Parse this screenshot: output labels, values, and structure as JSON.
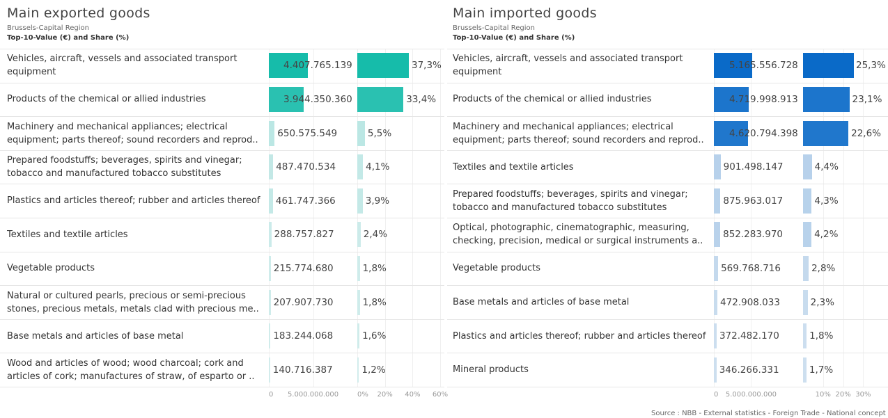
{
  "chart_data": [
    {
      "type": "bar",
      "title": "Main exported goods",
      "subtitle": "Brussels-Capital Region",
      "caption": "Top-10-Value (€) and Share (%)",
      "categories": [
        "Vehicles, aircraft, vessels and associated transport equipment",
        "Products of the chemical or allied industries",
        "Machinery and mechanical appliances; electrical equipment; parts thereof; sound recorders and reprod..",
        "Prepared foodstuffs; beverages, spirits and vinegar; tobacco and manufactured tobacco substitutes",
        "Plastics and articles thereof; rubber and articles thereof",
        "Textiles and textile articles",
        "Vegetable products",
        "Natural or cultured pearls, precious or semi-precious stones, precious metals, metals clad with precious me..",
        "Base metals and articles of base metal",
        "Wood and articles of wood; wood charcoal; cork and articles of cork; manufactures of straw, of esparto or .."
      ],
      "series": [
        {
          "values": [
            4407765139,
            3944350360,
            650575549,
            487470534,
            461747366,
            288757827,
            215774680,
            207907730,
            183244068,
            140716387
          ],
          "value_labels": [
            "4.407.765.139",
            "3.944.350.360",
            "650.575.549",
            "487.470.534",
            "461.747.366",
            "288.757.827",
            "215.774.680",
            "207.907.730",
            "183.244.068",
            "140.716.387"
          ],
          "color": [
            "#d8eeee",
            "#16bcaa"
          ],
          "xlim": [
            0,
            9600000000
          ],
          "xticks": [
            0,
            {
              "value": 5000000000,
              "label": "5.000.000.000"
            }
          ]
        },
        {
          "values": [
            37.3,
            33.4,
            5.5,
            4.1,
            3.9,
            2.4,
            1.8,
            1.8,
            1.6,
            1.2
          ],
          "value_labels": [
            "37,3%",
            "33,4%",
            "5,5%",
            "4,1%",
            "3,9%",
            "2,4%",
            "1,8%",
            "1,8%",
            "1,6%",
            "1,2%"
          ],
          "color": [
            "#d8eeee",
            "#16bcaa"
          ],
          "xlim": [
            0,
            62
          ],
          "xticks": [
            {
              "value": 0,
              "label": "0%"
            },
            {
              "value": 20,
              "label": "20%"
            },
            {
              "value": 40,
              "label": "40%"
            },
            {
              "value": 60,
              "label": "60%"
            }
          ]
        }
      ]
    },
    {
      "type": "bar",
      "title": "Main imported goods",
      "subtitle": "Brussels-Capital Region",
      "caption": "Top-10-Value (€) and Share (%)",
      "categories": [
        "Vehicles, aircraft, vessels and associated transport equipment",
        "Products of the chemical or allied industries",
        "Machinery and mechanical appliances; electrical equipment; parts thereof; sound recorders and reprod..",
        "Textiles and textile articles",
        "Prepared foodstuffs; beverages, spirits and vinegar; tobacco and manufactured tobacco substitutes",
        "Optical, photographic, cinematographic, measuring, checking, precision, medical or surgical instruments a..",
        "Vegetable products",
        "Base metals and articles of base metal",
        "Plastics and articles thereof; rubber and articles thereof",
        "Mineral products"
      ],
      "series": [
        {
          "values": [
            5165556728,
            4719998913,
            4620794398,
            901498147,
            875963017,
            852283970,
            569768716,
            472908033,
            372482170,
            346266331
          ],
          "value_labels": [
            "5.165.556.728",
            "4.719.998.913",
            "4.620.794.398",
            "901.498.147",
            "875.963.017",
            "852.283.970",
            "569.768.716",
            "472.908.033",
            "372.482.170",
            "346.266.331"
          ],
          "color": [
            "#dbe7f2",
            "#0a6ac8"
          ],
          "xlim": [
            0,
            11500000000
          ],
          "xticks": [
            0,
            {
              "value": 5000000000,
              "label": "5.000.000.000"
            }
          ]
        },
        {
          "values": [
            25.3,
            23.1,
            22.6,
            4.4,
            4.3,
            4.2,
            2.8,
            2.3,
            1.8,
            1.7
          ],
          "value_labels": [
            "25,3%",
            "23,1%",
            "22,6%",
            "4,4%",
            "4,3%",
            "4,2%",
            "2,8%",
            "2,3%",
            "1,8%",
            "1,7%"
          ],
          "color": [
            "#dbe7f2",
            "#0a6ac8"
          ],
          "xlim": [
            0,
            42
          ],
          "xticks": [
            {
              "value": 10,
              "label": "10%"
            },
            {
              "value": 20,
              "label": "20%"
            },
            {
              "value": 30,
              "label": "30%"
            }
          ]
        }
      ]
    }
  ],
  "source": "Source : NBB - External statistics - Foreign Trade - National concept"
}
